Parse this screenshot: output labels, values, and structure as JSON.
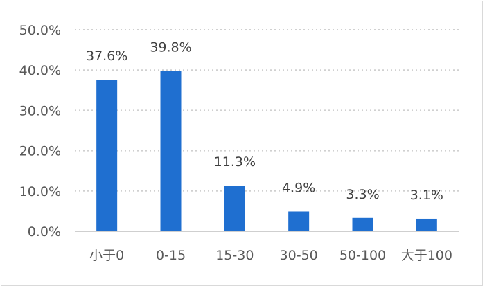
{
  "chart_data": {
    "type": "bar",
    "categories": [
      "小于0",
      "0-15",
      "15-30",
      "30-50",
      "50-100",
      "大于100"
    ],
    "values": [
      37.6,
      39.8,
      11.3,
      4.9,
      3.3,
      3.1
    ],
    "data_labels": [
      "37.6%",
      "39.8%",
      "11.3%",
      "4.9%",
      "3.3%",
      "3.1%"
    ],
    "y_ticks": [
      "0.0%",
      "10.0%",
      "20.0%",
      "30.0%",
      "40.0%",
      "50.0%"
    ],
    "ylim": [
      0,
      50
    ],
    "grid": true,
    "legend": "none",
    "colors": {
      "bar": "#1f6fd0",
      "grid": "#d0d0d0",
      "axis": "#bfbfbf"
    }
  }
}
